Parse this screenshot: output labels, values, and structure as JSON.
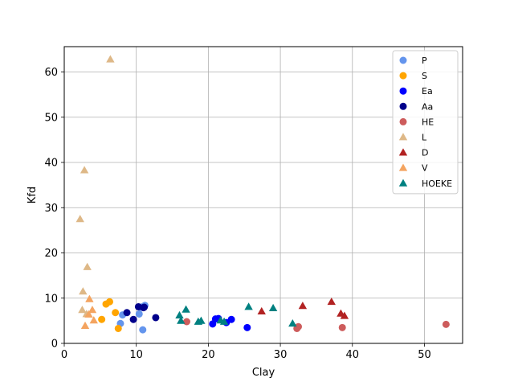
{
  "chart_data": {
    "type": "scatter",
    "title": "",
    "xlabel": "Clay",
    "ylabel": "Kfd",
    "xlim": [
      0,
      55.3
    ],
    "ylim": [
      0,
      65.6
    ],
    "xticks": [
      0,
      10,
      20,
      30,
      40,
      50
    ],
    "yticks": [
      0,
      10,
      20,
      30,
      40,
      50,
      60
    ],
    "grid": true,
    "legend_position": "upper-right",
    "series": [
      {
        "name": "P",
        "marker": "circle",
        "color": "#6495ED",
        "points": [
          [
            7.8,
            4.4
          ],
          [
            8.1,
            6.3
          ],
          [
            10.4,
            6.5
          ],
          [
            10.9,
            3.0
          ],
          [
            11.2,
            8.4
          ],
          [
            11.0,
            8.2
          ],
          [
            10.6,
            8.0
          ]
        ]
      },
      {
        "name": "S",
        "marker": "circle",
        "color": "#FFA500",
        "points": [
          [
            5.2,
            5.3
          ],
          [
            5.8,
            8.7
          ],
          [
            6.3,
            9.2
          ],
          [
            7.1,
            6.8
          ],
          [
            7.5,
            3.3
          ]
        ]
      },
      {
        "name": "Ea",
        "marker": "circle",
        "color": "#0000FF",
        "points": [
          [
            20.6,
            4.3
          ],
          [
            21.0,
            5.4
          ],
          [
            21.4,
            5.5
          ],
          [
            22.5,
            4.6
          ],
          [
            23.2,
            5.3
          ],
          [
            25.4,
            3.5
          ]
        ]
      },
      {
        "name": "Aa",
        "marker": "circle",
        "color": "#00008B",
        "points": [
          [
            8.7,
            6.8
          ],
          [
            9.6,
            5.3
          ],
          [
            10.3,
            8.1
          ],
          [
            11.1,
            8.0
          ],
          [
            12.7,
            5.7
          ],
          [
            11.0,
            7.9
          ]
        ]
      },
      {
        "name": "HE",
        "marker": "circle",
        "color": "#CD5C5C",
        "points": [
          [
            17.0,
            4.8
          ],
          [
            32.3,
            3.3
          ],
          [
            32.5,
            3.7
          ],
          [
            38.6,
            3.5
          ],
          [
            53.0,
            4.2
          ]
        ]
      },
      {
        "name": "L",
        "marker": "triangle",
        "color": "#DEB887",
        "points": [
          [
            2.2,
            27.5
          ],
          [
            2.8,
            38.3
          ],
          [
            2.6,
            11.5
          ],
          [
            2.5,
            7.4
          ],
          [
            3.2,
            16.9
          ],
          [
            3.1,
            6.5
          ],
          [
            6.4,
            62.8
          ]
        ]
      },
      {
        "name": "D",
        "marker": "triangle",
        "color": "#B22222",
        "points": [
          [
            27.4,
            7.1
          ],
          [
            33.1,
            8.3
          ],
          [
            37.1,
            9.2
          ],
          [
            38.4,
            6.6
          ],
          [
            38.9,
            6.1
          ]
        ]
      },
      {
        "name": "V",
        "marker": "triangle",
        "color": "#F4A460",
        "points": [
          [
            2.9,
            3.9
          ],
          [
            3.5,
            9.8
          ],
          [
            3.9,
            7.4
          ],
          [
            3.4,
            6.4
          ],
          [
            4.1,
            5.1
          ]
        ]
      },
      {
        "name": "HOEKE",
        "marker": "triangle",
        "color": "#008080",
        "points": [
          [
            16.0,
            6.2
          ],
          [
            16.2,
            5.0
          ],
          [
            16.9,
            7.5
          ],
          [
            18.6,
            4.8
          ],
          [
            19.0,
            5.0
          ],
          [
            21.7,
            5.1
          ],
          [
            22.2,
            4.8
          ],
          [
            25.6,
            8.1
          ],
          [
            29.0,
            7.8
          ],
          [
            31.7,
            4.4
          ]
        ]
      }
    ]
  }
}
